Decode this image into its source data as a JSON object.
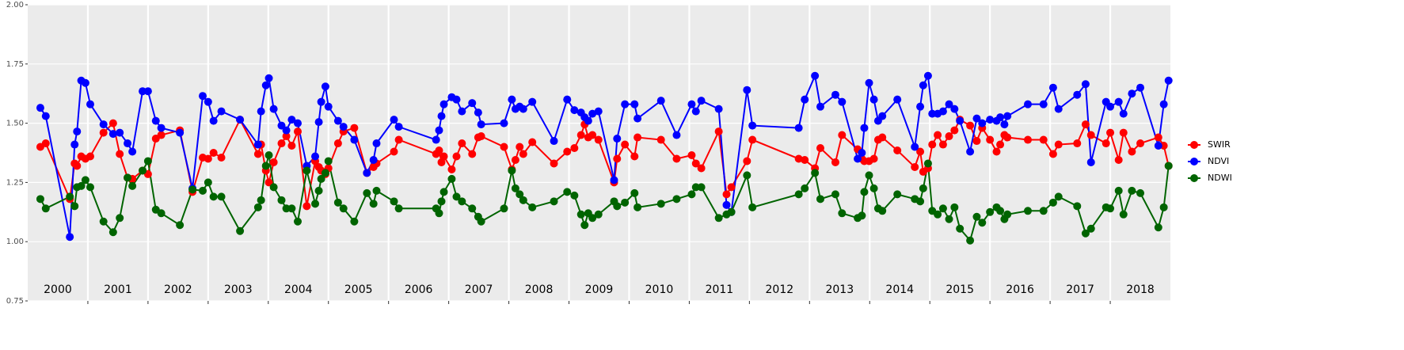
{
  "chart_data": {
    "type": "line",
    "x": [
      2000.21,
      2000.3,
      2000.7,
      2000.78,
      2000.82,
      2000.89,
      2000.96,
      2001.04,
      2001.26,
      2001.42,
      2001.53,
      2001.66,
      2001.74,
      2001.91,
      2002.0,
      2002.13,
      2002.22,
      2002.53,
      2002.74,
      2002.91,
      2003.0,
      2003.09,
      2003.22,
      2003.53,
      2003.83,
      2003.88,
      2003.96,
      2004.01,
      2004.09,
      2004.22,
      2004.3,
      2004.39,
      2004.49,
      2004.64,
      2004.78,
      2004.84,
      2004.88,
      2004.95,
      2005.0,
      2005.16,
      2005.25,
      2005.43,
      2005.64,
      2005.75,
      2005.8,
      2006.09,
      2006.17,
      2006.79,
      2006.84,
      2006.88,
      2006.92,
      2007.05,
      2007.13,
      2007.22,
      2007.39,
      2007.49,
      2007.54,
      2007.92,
      2008.05,
      2008.11,
      2008.18,
      2008.24,
      2008.39,
      2008.75,
      2008.97,
      2009.09,
      2009.2,
      2009.26,
      2009.32,
      2009.39,
      2009.49,
      2009.75,
      2009.8,
      2009.93,
      2010.09,
      2010.14,
      2010.53,
      2010.79,
      2011.04,
      2011.11,
      2011.2,
      2011.49,
      2011.62,
      2011.7,
      2011.96,
      2012.05,
      2012.82,
      2012.92,
      2013.09,
      2013.18,
      2013.43,
      2013.54,
      2013.8,
      2013.87,
      2013.91,
      2013.99,
      2014.07,
      2014.14,
      2014.21,
      2014.46,
      2014.75,
      2014.84,
      2014.89,
      2014.97,
      2015.04,
      2015.13,
      2015.22,
      2015.32,
      2015.41,
      2015.5,
      2015.67,
      2015.78,
      2015.87,
      2016.0,
      2016.11,
      2016.17,
      2016.24,
      2016.29,
      2016.63,
      2016.89,
      2017.05,
      2017.14,
      2017.45,
      2017.59,
      2017.68,
      2017.93,
      2018.0,
      2018.14,
      2018.22,
      2018.36,
      2018.5,
      2018.8,
      2018.89,
      2018.97
    ],
    "series": [
      {
        "name": "SWIR",
        "color": "#ff0000",
        "values": [
          1.4,
          1.415,
          1.18,
          1.33,
          1.32,
          1.36,
          1.35,
          1.36,
          1.46,
          1.5,
          1.37,
          1.27,
          1.265,
          1.3,
          1.285,
          1.435,
          1.45,
          1.47,
          1.21,
          1.355,
          1.35,
          1.375,
          1.355,
          1.515,
          1.37,
          1.41,
          1.3,
          1.25,
          1.335,
          1.415,
          1.445,
          1.405,
          1.465,
          1.15,
          1.34,
          1.315,
          1.3,
          1.285,
          1.31,
          1.415,
          1.465,
          1.48,
          1.29,
          1.315,
          1.33,
          1.38,
          1.43,
          1.37,
          1.385,
          1.335,
          1.36,
          1.305,
          1.36,
          1.415,
          1.37,
          1.44,
          1.445,
          1.4,
          1.305,
          1.345,
          1.4,
          1.37,
          1.42,
          1.33,
          1.38,
          1.395,
          1.45,
          1.495,
          1.44,
          1.45,
          1.43,
          1.25,
          1.35,
          1.41,
          1.36,
          1.44,
          1.43,
          1.35,
          1.365,
          1.33,
          1.31,
          1.465,
          1.2,
          1.23,
          1.34,
          1.43,
          1.35,
          1.345,
          1.31,
          1.395,
          1.335,
          1.45,
          1.39,
          1.35,
          1.34,
          1.34,
          1.35,
          1.43,
          1.44,
          1.385,
          1.315,
          1.38,
          1.295,
          1.31,
          1.41,
          1.45,
          1.41,
          1.445,
          1.47,
          1.515,
          1.49,
          1.425,
          1.48,
          1.43,
          1.38,
          1.41,
          1.45,
          1.44,
          1.43,
          1.43,
          1.37,
          1.41,
          1.415,
          1.495,
          1.45,
          1.415,
          1.46,
          1.345,
          1.46,
          1.38,
          1.415,
          1.44,
          1.405,
          1.32
        ]
      },
      {
        "name": "NDVI",
        "color": "#0000ff",
        "values": [
          1.565,
          1.53,
          1.02,
          1.41,
          1.465,
          1.68,
          1.67,
          1.58,
          1.495,
          1.455,
          1.46,
          1.415,
          1.38,
          1.635,
          1.635,
          1.51,
          1.48,
          1.46,
          1.225,
          1.615,
          1.59,
          1.51,
          1.55,
          1.515,
          1.41,
          1.55,
          1.66,
          1.69,
          1.56,
          1.49,
          1.47,
          1.515,
          1.5,
          1.32,
          1.36,
          1.505,
          1.59,
          1.655,
          1.57,
          1.51,
          1.485,
          1.43,
          1.29,
          1.345,
          1.415,
          1.515,
          1.485,
          1.43,
          1.47,
          1.53,
          1.58,
          1.61,
          1.6,
          1.55,
          1.585,
          1.545,
          1.495,
          1.5,
          1.6,
          1.56,
          1.57,
          1.56,
          1.59,
          1.425,
          1.6,
          1.555,
          1.545,
          1.525,
          1.51,
          1.54,
          1.55,
          1.26,
          1.435,
          1.58,
          1.58,
          1.52,
          1.595,
          1.45,
          1.58,
          1.55,
          1.595,
          1.56,
          1.155,
          1.125,
          1.64,
          1.49,
          1.48,
          1.6,
          1.7,
          1.57,
          1.62,
          1.59,
          1.35,
          1.375,
          1.48,
          1.67,
          1.6,
          1.51,
          1.53,
          1.6,
          1.4,
          1.57,
          1.66,
          1.7,
          1.54,
          1.54,
          1.55,
          1.58,
          1.56,
          1.51,
          1.38,
          1.52,
          1.5,
          1.515,
          1.51,
          1.525,
          1.495,
          1.53,
          1.58,
          1.58,
          1.65,
          1.56,
          1.62,
          1.665,
          1.335,
          1.59,
          1.57,
          1.59,
          1.54,
          1.625,
          1.65,
          1.405,
          1.58,
          1.68
        ]
      },
      {
        "name": "NDWI",
        "color": "#006400",
        "values": [
          1.18,
          1.14,
          1.19,
          1.15,
          1.23,
          1.235,
          1.26,
          1.23,
          1.085,
          1.04,
          1.1,
          1.27,
          1.235,
          1.3,
          1.34,
          1.135,
          1.12,
          1.07,
          1.22,
          1.215,
          1.25,
          1.19,
          1.19,
          1.045,
          1.145,
          1.175,
          1.32,
          1.365,
          1.23,
          1.175,
          1.14,
          1.14,
          1.085,
          1.3,
          1.16,
          1.215,
          1.265,
          1.29,
          1.34,
          1.165,
          1.14,
          1.085,
          1.205,
          1.16,
          1.215,
          1.17,
          1.14,
          1.14,
          1.12,
          1.17,
          1.21,
          1.265,
          1.19,
          1.17,
          1.14,
          1.105,
          1.085,
          1.14,
          1.3,
          1.225,
          1.2,
          1.175,
          1.145,
          1.17,
          1.21,
          1.195,
          1.115,
          1.07,
          1.12,
          1.1,
          1.115,
          1.17,
          1.15,
          1.165,
          1.205,
          1.145,
          1.16,
          1.18,
          1.2,
          1.23,
          1.23,
          1.1,
          1.115,
          1.125,
          1.28,
          1.145,
          1.2,
          1.225,
          1.29,
          1.18,
          1.2,
          1.12,
          1.1,
          1.11,
          1.21,
          1.28,
          1.225,
          1.14,
          1.13,
          1.2,
          1.18,
          1.17,
          1.225,
          1.33,
          1.13,
          1.115,
          1.14,
          1.095,
          1.145,
          1.055,
          1.005,
          1.105,
          1.08,
          1.125,
          1.145,
          1.13,
          1.095,
          1.115,
          1.13,
          1.13,
          1.165,
          1.19,
          1.15,
          1.035,
          1.055,
          1.145,
          1.14,
          1.215,
          1.115,
          1.215,
          1.205,
          1.06,
          1.145,
          1.32
        ]
      }
    ],
    "year_labels": [
      "2000",
      "2001",
      "2002",
      "2003",
      "2004",
      "2005",
      "2006",
      "2007",
      "2008",
      "2009",
      "2010",
      "2011",
      "2012",
      "2013",
      "2014",
      "2015",
      "2016",
      "2017",
      "2018"
    ],
    "xlim": [
      2000,
      2019
    ],
    "xticks": [
      2001,
      2002,
      2003,
      2004,
      2005,
      2006,
      2007,
      2008,
      2009,
      2010,
      2011,
      2012,
      2013,
      2014,
      2015,
      2016,
      2017,
      2018
    ],
    "ylim": [
      0.75,
      2.0
    ],
    "yticks": [
      {
        "value": 0.75,
        "label": "0.75"
      },
      {
        "value": 1,
        "label": "1.00"
      },
      {
        "value": 1.25,
        "label": "1.25"
      },
      {
        "value": 1.5,
        "label": "1.50"
      },
      {
        "value": 1.75,
        "label": "1.75"
      },
      {
        "value": 2,
        "label": "2.00"
      }
    ],
    "grid": true,
    "legend": "right"
  }
}
